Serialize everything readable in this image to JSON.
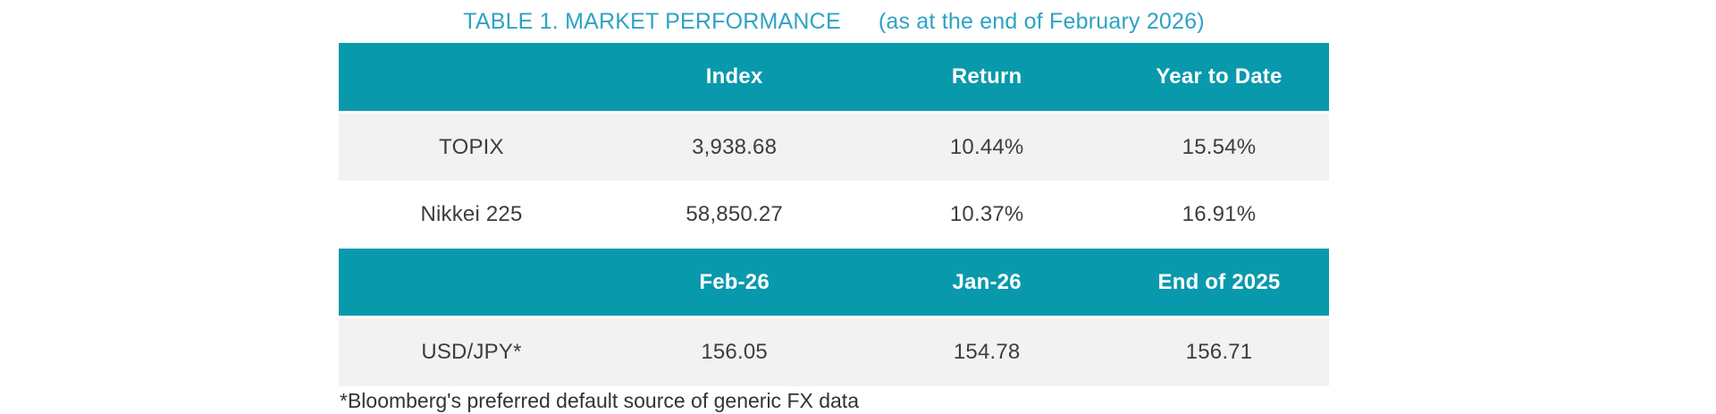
{
  "title": {
    "main": "TABLE 1. MARKET PERFORMANCE",
    "suffix": "(as at the end of February 2026)"
  },
  "colors": {
    "teal": "#0999ad",
    "title": "#2ea2c4",
    "row_alt": "#f2f2f2",
    "text": "#3d3d3d",
    "header_text": "#ffffff",
    "footnote_text": "#333333"
  },
  "table1": {
    "headers": [
      "",
      "Index",
      "Return",
      "Year to Date"
    ],
    "rows": [
      {
        "label": "TOPIX",
        "values": [
          "3,938.68",
          "10.44%",
          "15.54%"
        ]
      },
      {
        "label": "Nikkei 225",
        "values": [
          "58,850.27",
          "10.37%",
          "16.91%"
        ]
      }
    ]
  },
  "table2": {
    "headers": [
      "",
      "Feb-26",
      "Jan-26",
      "End of 2025"
    ],
    "rows": [
      {
        "label": "USD/JPY*",
        "values": [
          "156.05",
          "154.78",
          "156.71"
        ]
      }
    ]
  },
  "footnote": "*Bloomberg's preferred default source of generic FX data"
}
